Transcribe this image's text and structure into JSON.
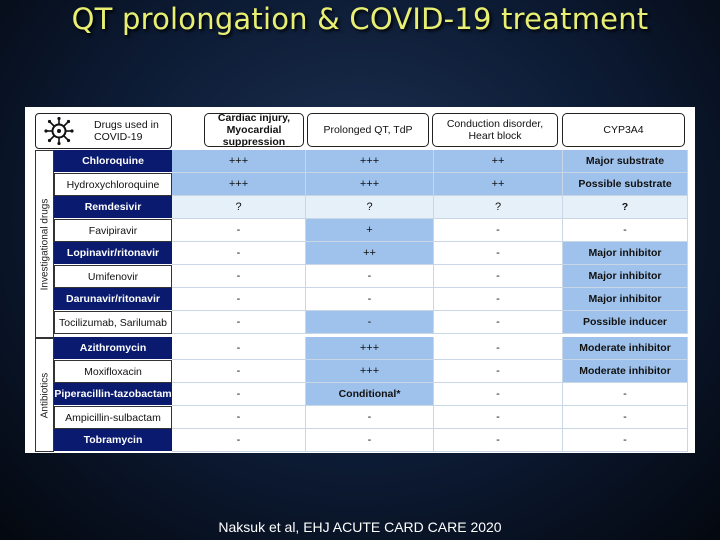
{
  "title": "QT prolongation & COVID-19 treatment",
  "citation": "Naksuk et al, EHJ ACUTE CARD CARE 2020",
  "table": {
    "drug_header": "Drugs used in COVID-19",
    "columns": [
      "Cardiac injury, Myocardial suppression",
      "Prolonged QT, TdP",
      "Conduction disorder, Heart block",
      "CYP3A4"
    ],
    "groups": [
      "Investigational drugs",
      "Antibiotics"
    ],
    "rows": [
      {
        "drug": "Chloroquine",
        "cardiac": "+++",
        "qt": "+++",
        "conduction": "++",
        "cyp": "Major substrate"
      },
      {
        "drug": "Hydroxychloroquine",
        "cardiac": "+++",
        "qt": "+++",
        "conduction": "++",
        "cyp": "Possible substrate"
      },
      {
        "drug": "Remdesivir",
        "cardiac": "?",
        "qt": "?",
        "conduction": "?",
        "cyp": "?"
      },
      {
        "drug": "Favipiravir",
        "cardiac": "-",
        "qt": "+",
        "conduction": "-",
        "cyp": "-"
      },
      {
        "drug": "Lopinavir/ritonavir",
        "cardiac": "-",
        "qt": "++",
        "conduction": "-",
        "cyp": "Major inhibitor"
      },
      {
        "drug": "Umifenovir",
        "cardiac": "-",
        "qt": "-",
        "conduction": "-",
        "cyp": "Major inhibitor"
      },
      {
        "drug": "Darunavir/ritonavir",
        "cardiac": "-",
        "qt": "-",
        "conduction": "-",
        "cyp": "Major inhibitor"
      },
      {
        "drug": "Tocilizumab, Sarilumab",
        "cardiac": "-",
        "qt": "-",
        "conduction": "-",
        "cyp": "Possible inducer"
      },
      {
        "drug": "Azithromycin",
        "cardiac": "-",
        "qt": "+++",
        "conduction": "-",
        "cyp": "Moderate inhibitor"
      },
      {
        "drug": "Moxifloxacin",
        "cardiac": "-",
        "qt": "+++",
        "conduction": "-",
        "cyp": "Moderate inhibitor"
      },
      {
        "drug": "Piperacillin-tazobactam",
        "cardiac": "-",
        "qt": "Conditional*",
        "conduction": "-",
        "cyp": "-"
      },
      {
        "drug": "Ampicillin-sulbactam",
        "cardiac": "-",
        "qt": "-",
        "conduction": "-",
        "cyp": "-"
      },
      {
        "drug": "Tobramycin",
        "cardiac": "-",
        "qt": "-",
        "conduction": "-",
        "cyp": "-"
      }
    ]
  },
  "colors": {
    "title": "#e8ef73",
    "drug_cell": "#0a1a6e",
    "highlight": "#9ec2ec",
    "light_highlight": "#e6f0f9"
  }
}
